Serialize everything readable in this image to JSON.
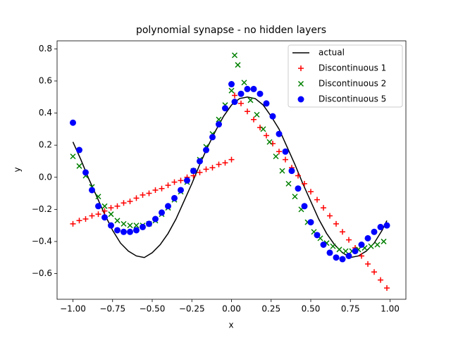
{
  "chart_data": {
    "type": "scatter",
    "title": "polynomial synapse - no hidden layers",
    "x_label": "x",
    "y_label": "y",
    "xlim": [
      -1.1,
      1.1
    ],
    "ylim": [
      -0.76,
      0.85
    ],
    "xticks": [
      {
        "value": -1.0,
        "label": "−1.00"
      },
      {
        "value": -0.75,
        "label": "−0.75"
      },
      {
        "value": -0.5,
        "label": "−0.50"
      },
      {
        "value": -0.25,
        "label": "−0.25"
      },
      {
        "value": 0.0,
        "label": "0.00"
      },
      {
        "value": 0.25,
        "label": "0.25"
      },
      {
        "value": 0.5,
        "label": "0.50"
      },
      {
        "value": 0.75,
        "label": "0.75"
      },
      {
        "value": 1.0,
        "label": "1.00"
      }
    ],
    "yticks": [
      {
        "value": -0.6,
        "label": "−0.6"
      },
      {
        "value": -0.4,
        "label": "−0.4"
      },
      {
        "value": -0.2,
        "label": "−0.2"
      },
      {
        "value": 0.0,
        "label": "0.0"
      },
      0.2,
      0.4,
      0.6,
      0.8
    ],
    "legend": "upper right",
    "series": [
      {
        "name": "actual",
        "kind": "line",
        "color": "#000000",
        "x": [
          -1.0,
          -0.95,
          -0.9,
          -0.85,
          -0.8,
          -0.75,
          -0.7,
          -0.65,
          -0.6,
          -0.55,
          -0.5,
          -0.45,
          -0.4,
          -0.35,
          -0.3,
          -0.25,
          -0.2,
          -0.15,
          -0.1,
          -0.05,
          0.0,
          0.05,
          0.1,
          0.15,
          0.2,
          0.25,
          0.3,
          0.35,
          0.4,
          0.45,
          0.5,
          0.55,
          0.6,
          0.65,
          0.7,
          0.75,
          0.8,
          0.85,
          0.9,
          0.95,
          0.98
        ],
        "values": [
          0.22,
          0.11,
          -0.01,
          -0.12,
          -0.23,
          -0.33,
          -0.41,
          -0.46,
          -0.49,
          -0.5,
          -0.47,
          -0.42,
          -0.35,
          -0.26,
          -0.15,
          -0.04,
          0.08,
          0.19,
          0.29,
          0.38,
          0.45,
          0.49,
          0.5,
          0.49,
          0.45,
          0.38,
          0.3,
          0.19,
          0.08,
          -0.04,
          -0.15,
          -0.26,
          -0.35,
          -0.42,
          -0.47,
          -0.5,
          -0.49,
          -0.46,
          -0.41,
          -0.33,
          -0.27
        ]
      },
      {
        "name": "Discontinuous 1",
        "kind": "scatter",
        "marker": "plus",
        "color": "#ff0000",
        "x": [
          -1.0,
          -0.96,
          -0.92,
          -0.88,
          -0.84,
          -0.8,
          -0.76,
          -0.72,
          -0.68,
          -0.64,
          -0.6,
          -0.56,
          -0.52,
          -0.48,
          -0.44,
          -0.4,
          -0.36,
          -0.32,
          -0.28,
          -0.24,
          -0.2,
          -0.16,
          -0.12,
          -0.08,
          -0.04,
          0.0,
          0.02,
          0.06,
          0.1,
          0.14,
          0.18,
          0.22,
          0.26,
          0.3,
          0.34,
          0.38,
          0.42,
          0.46,
          0.5,
          0.54,
          0.58,
          0.62,
          0.66,
          0.7,
          0.74,
          0.78,
          0.82,
          0.86,
          0.9,
          0.94,
          0.98
        ],
        "values": [
          -0.29,
          -0.27,
          -0.26,
          -0.24,
          -0.23,
          -0.21,
          -0.19,
          -0.18,
          -0.16,
          -0.15,
          -0.13,
          -0.11,
          -0.1,
          -0.08,
          -0.07,
          -0.05,
          -0.03,
          -0.02,
          0.0,
          0.01,
          0.03,
          0.05,
          0.06,
          0.08,
          0.09,
          0.11,
          0.51,
          0.46,
          0.41,
          0.36,
          0.31,
          0.26,
          0.21,
          0.16,
          0.11,
          0.06,
          0.01,
          -0.04,
          -0.09,
          -0.14,
          -0.19,
          -0.24,
          -0.29,
          -0.34,
          -0.39,
          -0.44,
          -0.49,
          -0.54,
          -0.59,
          -0.64,
          -0.69
        ]
      },
      {
        "name": "Discontinuous 2",
        "kind": "scatter",
        "marker": "cross",
        "color": "#008000",
        "x": [
          -1.0,
          -0.96,
          -0.92,
          -0.88,
          -0.84,
          -0.8,
          -0.76,
          -0.72,
          -0.68,
          -0.64,
          -0.6,
          -0.56,
          -0.52,
          -0.48,
          -0.44,
          -0.4,
          -0.36,
          -0.32,
          -0.28,
          -0.24,
          -0.2,
          -0.16,
          -0.12,
          -0.08,
          -0.04,
          0.0,
          0.02,
          0.04,
          0.08,
          0.12,
          0.16,
          0.2,
          0.24,
          0.28,
          0.32,
          0.36,
          0.4,
          0.44,
          0.48,
          0.52,
          0.56,
          0.6,
          0.64,
          0.68,
          0.72,
          0.76,
          0.8,
          0.84,
          0.88,
          0.92,
          0.96
        ],
        "values": [
          0.13,
          0.07,
          0.01,
          -0.06,
          -0.12,
          -0.18,
          -0.23,
          -0.27,
          -0.29,
          -0.3,
          -0.3,
          -0.3,
          -0.29,
          -0.27,
          -0.23,
          -0.19,
          -0.14,
          -0.09,
          -0.03,
          0.04,
          0.11,
          0.19,
          0.27,
          0.36,
          0.45,
          0.54,
          0.76,
          0.7,
          0.59,
          0.48,
          0.39,
          0.3,
          0.22,
          0.13,
          0.04,
          -0.04,
          -0.12,
          -0.2,
          -0.28,
          -0.34,
          -0.38,
          -0.41,
          -0.43,
          -0.45,
          -0.46,
          -0.46,
          -0.45,
          -0.44,
          -0.43,
          -0.42,
          -0.4
        ]
      },
      {
        "name": "Discontinuous 5",
        "kind": "scatter",
        "marker": "circle",
        "color": "#0000ff",
        "x": [
          -1.0,
          -0.96,
          -0.92,
          -0.88,
          -0.84,
          -0.8,
          -0.76,
          -0.72,
          -0.68,
          -0.64,
          -0.6,
          -0.56,
          -0.52,
          -0.48,
          -0.44,
          -0.4,
          -0.36,
          -0.32,
          -0.28,
          -0.24,
          -0.2,
          -0.16,
          -0.12,
          -0.08,
          -0.04,
          0.0,
          0.02,
          0.06,
          0.1,
          0.14,
          0.18,
          0.22,
          0.26,
          0.3,
          0.34,
          0.38,
          0.42,
          0.46,
          0.5,
          0.54,
          0.58,
          0.62,
          0.66,
          0.7,
          0.74,
          0.78,
          0.82,
          0.86,
          0.9,
          0.94,
          0.98
        ],
        "values": [
          0.34,
          0.17,
          0.03,
          -0.08,
          -0.18,
          -0.25,
          -0.3,
          -0.33,
          -0.34,
          -0.34,
          -0.33,
          -0.31,
          -0.29,
          -0.26,
          -0.22,
          -0.18,
          -0.13,
          -0.08,
          -0.02,
          0.04,
          0.1,
          0.17,
          0.25,
          0.33,
          0.43,
          0.58,
          0.47,
          0.52,
          0.55,
          0.55,
          0.52,
          0.46,
          0.38,
          0.27,
          0.16,
          0.04,
          -0.07,
          -0.18,
          -0.28,
          -0.36,
          -0.42,
          -0.47,
          -0.5,
          -0.51,
          -0.49,
          -0.46,
          -0.42,
          -0.38,
          -0.34,
          -0.31,
          -0.3
        ]
      }
    ]
  }
}
